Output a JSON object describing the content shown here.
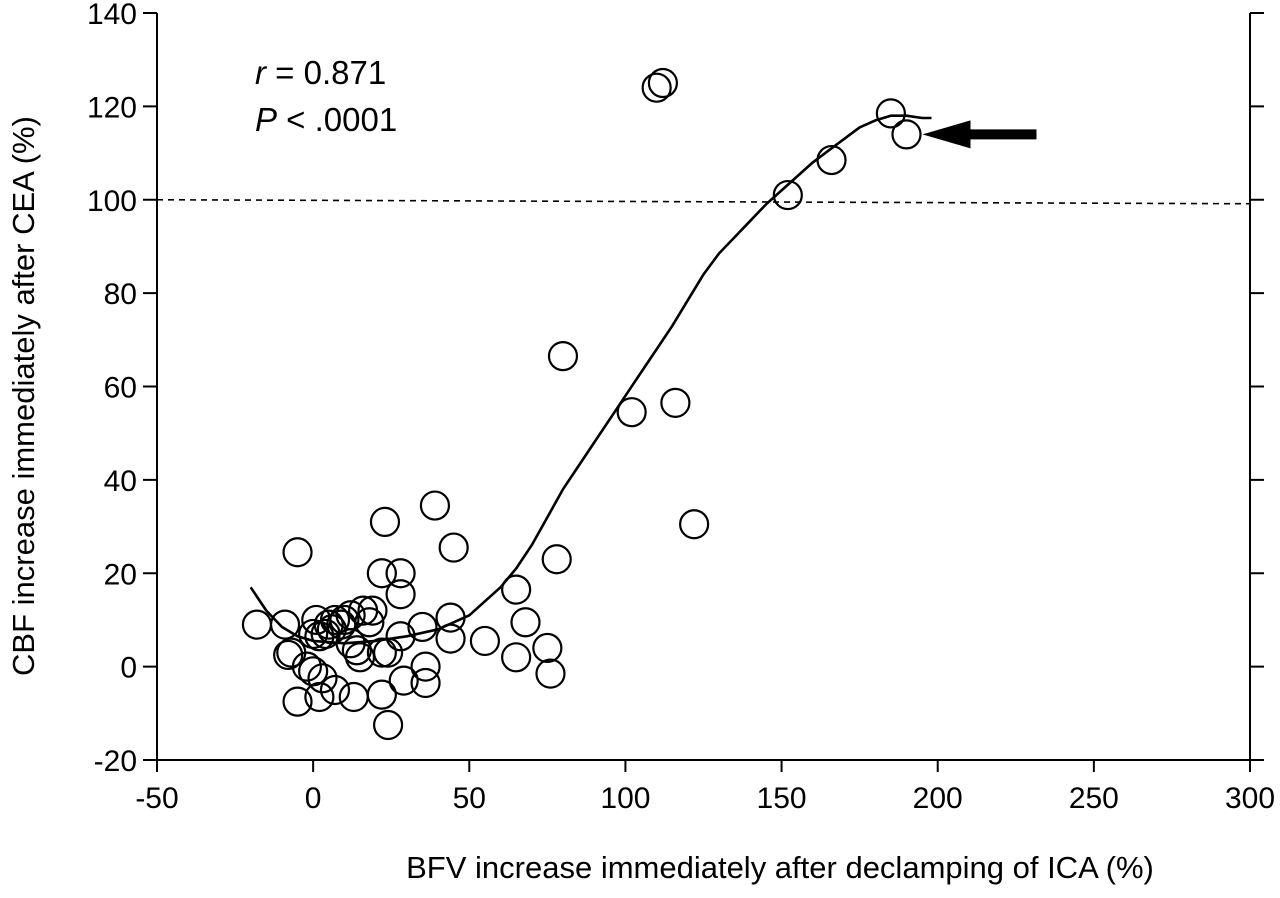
{
  "chart_data": {
    "type": "scatter",
    "xlabel": "BFV increase immediately after declamping of ICA (%)",
    "ylabel": "CBF increase immediately after CEA (%)",
    "xlim": [
      -50,
      300
    ],
    "ylim": [
      -20,
      140
    ],
    "x_ticks": [
      -50,
      0,
      50,
      100,
      150,
      200,
      250,
      300
    ],
    "y_ticks": [
      -20,
      0,
      20,
      40,
      60,
      80,
      100,
      120,
      140
    ],
    "x_tick_labels": [
      "-50",
      "0",
      "50",
      "100",
      "150",
      "200",
      "250",
      "300"
    ],
    "y_tick_labels": [
      "-20",
      "0",
      "20",
      "40",
      "60",
      "80",
      "100",
      "120",
      "140"
    ],
    "grid": false,
    "reference_line": {
      "y": 100,
      "style": "dashed"
    },
    "stats": {
      "r_symbol": "r",
      "r_text": " = 0.871",
      "p_symbol": "P",
      "p_text": " < .0001"
    },
    "arrow_target": {
      "x": 190,
      "y": 114
    },
    "series": [
      {
        "marker": "open-circle",
        "points": [
          [
            -18,
            9
          ],
          [
            -9,
            9
          ],
          [
            -8,
            2.5
          ],
          [
            -7,
            3
          ],
          [
            -5,
            24.5
          ],
          [
            -5,
            -7.5
          ],
          [
            -2,
            0
          ],
          [
            0,
            7
          ],
          [
            0,
            -1
          ],
          [
            1,
            10
          ],
          [
            2,
            6.5
          ],
          [
            2,
            -6.5
          ],
          [
            3,
            -2.5
          ],
          [
            4,
            7
          ],
          [
            5,
            9
          ],
          [
            6,
            8
          ],
          [
            7,
            10
          ],
          [
            7,
            -5
          ],
          [
            9,
            9
          ],
          [
            10,
            10
          ],
          [
            12,
            11
          ],
          [
            12,
            5
          ],
          [
            13,
            -6.5
          ],
          [
            14,
            3.5
          ],
          [
            15,
            2
          ],
          [
            16,
            12
          ],
          [
            18,
            9.5
          ],
          [
            19,
            12
          ],
          [
            22,
            20
          ],
          [
            22,
            3
          ],
          [
            22,
            -6
          ],
          [
            23,
            31
          ],
          [
            24,
            3
          ],
          [
            24,
            -12.5
          ],
          [
            28,
            20
          ],
          [
            28,
            15.5
          ],
          [
            28,
            6.5
          ],
          [
            29,
            -3
          ],
          [
            35,
            8.5
          ],
          [
            36,
            0
          ],
          [
            36,
            -3.5
          ],
          [
            39,
            34.5
          ],
          [
            44,
            10.5
          ],
          [
            44,
            6
          ],
          [
            45,
            25.5
          ],
          [
            55,
            5.5
          ],
          [
            65,
            16.5
          ],
          [
            65,
            2
          ],
          [
            68,
            9.5
          ],
          [
            75,
            4
          ],
          [
            76,
            -1.5
          ],
          [
            78,
            23
          ],
          [
            80,
            66.5
          ],
          [
            102,
            54.5
          ],
          [
            110,
            124
          ],
          [
            112,
            125
          ],
          [
            116,
            56.5
          ],
          [
            122,
            30.5
          ],
          [
            152,
            101
          ],
          [
            166,
            108.5
          ],
          [
            185,
            118.5
          ],
          [
            190,
            114
          ]
        ]
      },
      {
        "marker": "line",
        "points": [
          [
            -20,
            17
          ],
          [
            -15,
            12
          ],
          [
            -10,
            8.5
          ],
          [
            -5,
            6.5
          ],
          [
            0,
            5.5
          ],
          [
            10,
            5
          ],
          [
            20,
            5.5
          ],
          [
            30,
            6.5
          ],
          [
            40,
            8
          ],
          [
            50,
            11
          ],
          [
            60,
            17
          ],
          [
            65,
            21
          ],
          [
            70,
            26
          ],
          [
            75,
            32
          ],
          [
            80,
            38
          ],
          [
            85,
            43
          ],
          [
            90,
            48
          ],
          [
            95,
            53
          ],
          [
            100,
            58
          ],
          [
            105,
            63
          ],
          [
            110,
            68
          ],
          [
            115,
            73
          ],
          [
            120,
            78.5
          ],
          [
            125,
            84
          ],
          [
            130,
            88.5
          ],
          [
            135,
            92
          ],
          [
            140,
            95.5
          ],
          [
            145,
            99
          ],
          [
            150,
            102
          ],
          [
            155,
            105
          ],
          [
            160,
            108
          ],
          [
            165,
            110.5
          ],
          [
            170,
            113
          ],
          [
            175,
            115.5
          ],
          [
            180,
            117
          ],
          [
            185,
            118
          ],
          [
            190,
            118
          ],
          [
            195,
            117.5
          ],
          [
            198,
            117.5
          ]
        ]
      }
    ]
  }
}
